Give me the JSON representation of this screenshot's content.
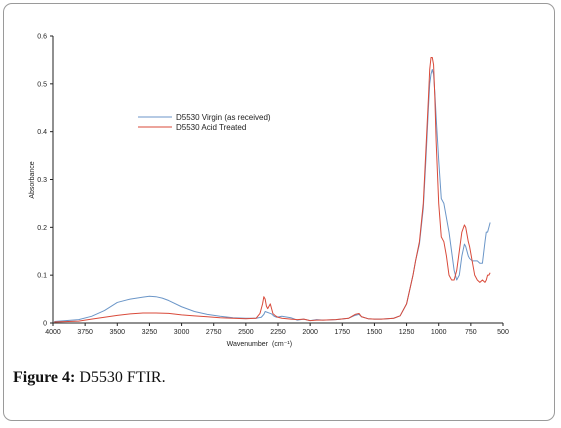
{
  "figure": {
    "label": "Figure 4:",
    "text": "D5530 FTIR."
  },
  "chart_data": {
    "type": "line",
    "title": "",
    "xlabel": "Wavenumber",
    "xlabel_unit": "(cm⁻¹)",
    "ylabel": "Absorbance",
    "xlim": [
      4000,
      500
    ],
    "ylim": [
      0,
      0.6
    ],
    "x_reversed": true,
    "x_ticks": [
      4000,
      3750,
      3500,
      3250,
      3000,
      2750,
      2500,
      2250,
      2000,
      1750,
      1500,
      1250,
      1000,
      750,
      500
    ],
    "y_ticks": [
      0,
      0.1,
      0.2,
      0.3,
      0.4,
      0.5,
      0.6
    ],
    "y_tick_labels": [
      "0",
      "0.1",
      "0.2",
      "0.3",
      "0.4",
      "0.5",
      "0.6"
    ],
    "grid": false,
    "legend_position": "center-left",
    "series": [
      {
        "name": "D5530 Virgin (as received)",
        "color": "#6b96c8",
        "x": [
          3990,
          3800,
          3700,
          3600,
          3500,
          3400,
          3300,
          3250,
          3200,
          3150,
          3100,
          3000,
          2900,
          2800,
          2700,
          2600,
          2500,
          2420,
          2380,
          2360,
          2350,
          2340,
          2320,
          2300,
          2280,
          2260,
          2220,
          2150,
          2100,
          2050,
          2000,
          1950,
          1900,
          1800,
          1700,
          1650,
          1620,
          1600,
          1550,
          1500,
          1450,
          1400,
          1350,
          1300,
          1250,
          1200,
          1180,
          1150,
          1120,
          1100,
          1080,
          1070,
          1060,
          1050,
          1040,
          1030,
          1020,
          1000,
          980,
          960,
          940,
          920,
          900,
          880,
          860,
          840,
          820,
          800,
          790,
          780,
          770,
          760,
          740,
          720,
          700,
          680,
          660,
          640,
          630,
          620,
          610,
          600
        ],
        "y": [
          0.003,
          0.007,
          0.014,
          0.026,
          0.043,
          0.05,
          0.054,
          0.056,
          0.055,
          0.052,
          0.047,
          0.034,
          0.024,
          0.018,
          0.014,
          0.011,
          0.01,
          0.01,
          0.012,
          0.018,
          0.024,
          0.023,
          0.021,
          0.019,
          0.014,
          0.012,
          0.014,
          0.011,
          0.006,
          0.008,
          0.005,
          0.007,
          0.006,
          0.007,
          0.01,
          0.016,
          0.018,
          0.013,
          0.009,
          0.008,
          0.008,
          0.009,
          0.01,
          0.015,
          0.04,
          0.1,
          0.13,
          0.165,
          0.24,
          0.34,
          0.45,
          0.5,
          0.52,
          0.53,
          0.52,
          0.48,
          0.43,
          0.34,
          0.26,
          0.25,
          0.22,
          0.19,
          0.15,
          0.11,
          0.09,
          0.1,
          0.14,
          0.165,
          0.16,
          0.15,
          0.14,
          0.135,
          0.13,
          0.13,
          0.13,
          0.125,
          0.125,
          0.17,
          0.19,
          0.19,
          0.2,
          0.21
        ]
      },
      {
        "name": "D5530 Acid Treated",
        "color": "#d94a3a",
        "x": [
          3990,
          3800,
          3700,
          3600,
          3500,
          3400,
          3300,
          3200,
          3100,
          3000,
          2900,
          2800,
          2700,
          2600,
          2500,
          2420,
          2390,
          2370,
          2360,
          2350,
          2340,
          2330,
          2310,
          2290,
          2270,
          2250,
          2220,
          2150,
          2100,
          2050,
          2000,
          1950,
          1900,
          1800,
          1700,
          1650,
          1620,
          1600,
          1550,
          1500,
          1450,
          1400,
          1350,
          1300,
          1250,
          1200,
          1180,
          1150,
          1120,
          1100,
          1080,
          1070,
          1060,
          1050,
          1040,
          1030,
          1020,
          1000,
          980,
          960,
          940,
          920,
          900,
          880,
          860,
          840,
          820,
          800,
          790,
          780,
          770,
          760,
          740,
          720,
          700,
          680,
          660,
          640,
          630,
          620,
          610,
          600
        ],
        "y": [
          0.002,
          0.004,
          0.008,
          0.012,
          0.016,
          0.019,
          0.021,
          0.021,
          0.02,
          0.017,
          0.015,
          0.013,
          0.011,
          0.01,
          0.009,
          0.01,
          0.02,
          0.04,
          0.055,
          0.05,
          0.035,
          0.03,
          0.04,
          0.02,
          0.015,
          0.012,
          0.01,
          0.008,
          0.007,
          0.008,
          0.005,
          0.006,
          0.006,
          0.007,
          0.01,
          0.018,
          0.02,
          0.013,
          0.009,
          0.008,
          0.008,
          0.009,
          0.01,
          0.015,
          0.04,
          0.1,
          0.13,
          0.17,
          0.25,
          0.36,
          0.47,
          0.53,
          0.555,
          0.555,
          0.54,
          0.47,
          0.38,
          0.25,
          0.18,
          0.17,
          0.14,
          0.1,
          0.09,
          0.09,
          0.11,
          0.15,
          0.19,
          0.205,
          0.2,
          0.185,
          0.17,
          0.16,
          0.13,
          0.1,
          0.09,
          0.085,
          0.09,
          0.085,
          0.09,
          0.1,
          0.1,
          0.105
        ]
      }
    ]
  }
}
